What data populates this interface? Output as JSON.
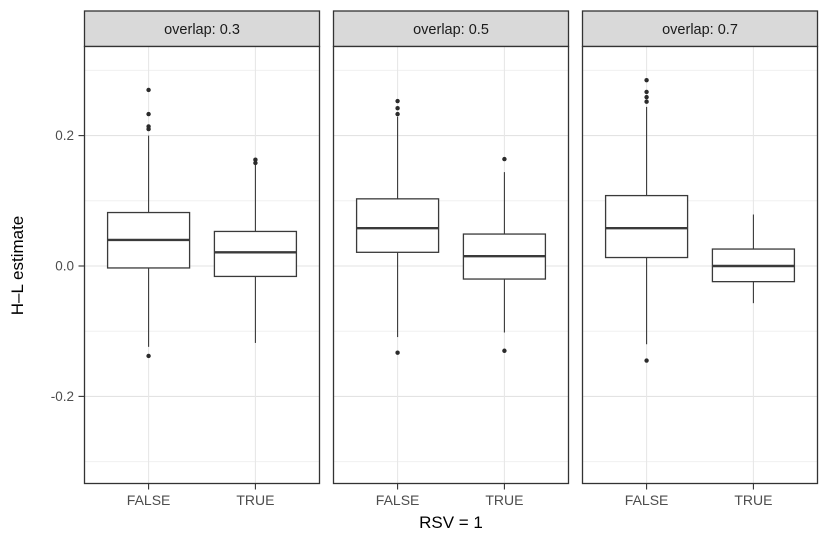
{
  "chart_data": {
    "type": "box",
    "title": "",
    "xlabel": "RSV = 1",
    "ylabel": "H–L estimate",
    "categories": [
      "FALSE",
      "TRUE"
    ],
    "y_ticks": [
      {
        "value": 0.2,
        "label": "0.2"
      },
      {
        "value": 0.0,
        "label": "0.0"
      },
      {
        "value": -0.2,
        "label": "-0.2"
      }
    ],
    "ylim": [
      -0.334,
      0.335
    ],
    "grid": {
      "major_y": [
        0.2,
        0.0,
        -0.2
      ],
      "minor_y": [
        0.3,
        0.1,
        -0.1,
        -0.3
      ],
      "vertical_at_categories": true
    },
    "legend": "none",
    "facets": [
      {
        "label": "overlap: 0.3",
        "groups": [
          {
            "category": "FALSE",
            "whisker_low": -0.124,
            "q1": -0.003,
            "median": 0.04,
            "q3": 0.082,
            "whisker_high": 0.2,
            "outliers": [
              0.27,
              0.233,
              0.214,
              0.21,
              -0.138
            ]
          },
          {
            "category": "TRUE",
            "whisker_low": -0.118,
            "q1": -0.016,
            "median": 0.021,
            "q3": 0.053,
            "whisker_high": 0.155,
            "outliers": [
              0.163,
              0.158
            ]
          }
        ]
      },
      {
        "label": "overlap: 0.5",
        "groups": [
          {
            "category": "FALSE",
            "whisker_low": -0.109,
            "q1": 0.021,
            "median": 0.058,
            "q3": 0.103,
            "whisker_high": 0.229,
            "outliers": [
              0.253,
              0.242,
              0.233,
              -0.133
            ]
          },
          {
            "category": "TRUE",
            "whisker_low": -0.102,
            "q1": -0.02,
            "median": 0.015,
            "q3": 0.049,
            "whisker_high": 0.144,
            "outliers": [
              0.164,
              -0.13
            ]
          }
        ]
      },
      {
        "label": "overlap: 0.7",
        "groups": [
          {
            "category": "FALSE",
            "whisker_low": -0.12,
            "q1": 0.013,
            "median": 0.058,
            "q3": 0.108,
            "whisker_high": 0.244,
            "outliers": [
              0.285,
              0.267,
              0.259,
              0.252,
              -0.145
            ]
          },
          {
            "category": "TRUE",
            "whisker_low": -0.057,
            "q1": -0.024,
            "median": 0.0,
            "q3": 0.026,
            "whisker_high": 0.079,
            "outliers": []
          }
        ]
      }
    ]
  },
  "style": {
    "strip_fill": "#d9d9d9",
    "border_color": "#333333",
    "line_color": "#3a3a3a",
    "box_fill": "#ffffff",
    "grid_major": "#e3e3e3",
    "grid_minor": "#f0f0f0",
    "grid_vertical": "#e7e7e7",
    "outlier_color": "#2b2b2b",
    "axis_text_color": "#4d4d4d",
    "title_color": "#000000"
  }
}
